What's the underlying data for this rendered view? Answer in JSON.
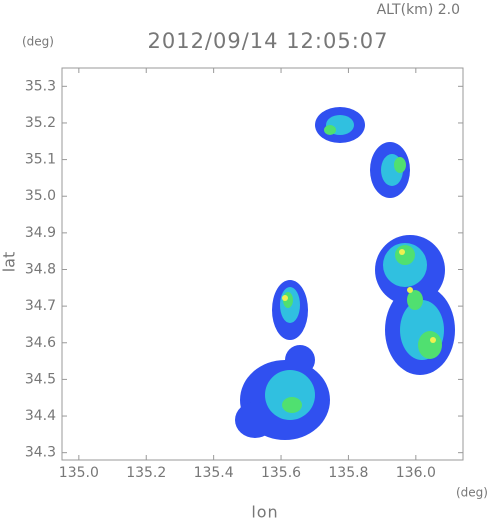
{
  "chart_data": {
    "type": "map",
    "title": "2012/09/14 12:05:07",
    "subtitle": "ALT(km) 2.0",
    "x_label": "lon",
    "y_label": "lat",
    "x_unit": "(deg)",
    "y_unit": "(deg)",
    "xlim": [
      134.95,
      136.14
    ],
    "ylim": [
      34.28,
      35.35
    ],
    "xticks": [
      {
        "value": 135,
        "label": "135.0"
      },
      {
        "value": 135.2,
        "label": "135.2"
      },
      {
        "value": 135.4,
        "label": "135.4"
      },
      {
        "value": 135.6,
        "label": "135.6"
      },
      {
        "value": 135.8,
        "label": "135.8"
      },
      {
        "value": 136,
        "label": "136.0"
      }
    ],
    "yticks": [
      34.3,
      34.4,
      34.5,
      34.6,
      34.7,
      34.8,
      34.9,
      {
        "value": 35,
        "label": "35.0"
      },
      35.1,
      35.2,
      35.3
    ]
  }
}
